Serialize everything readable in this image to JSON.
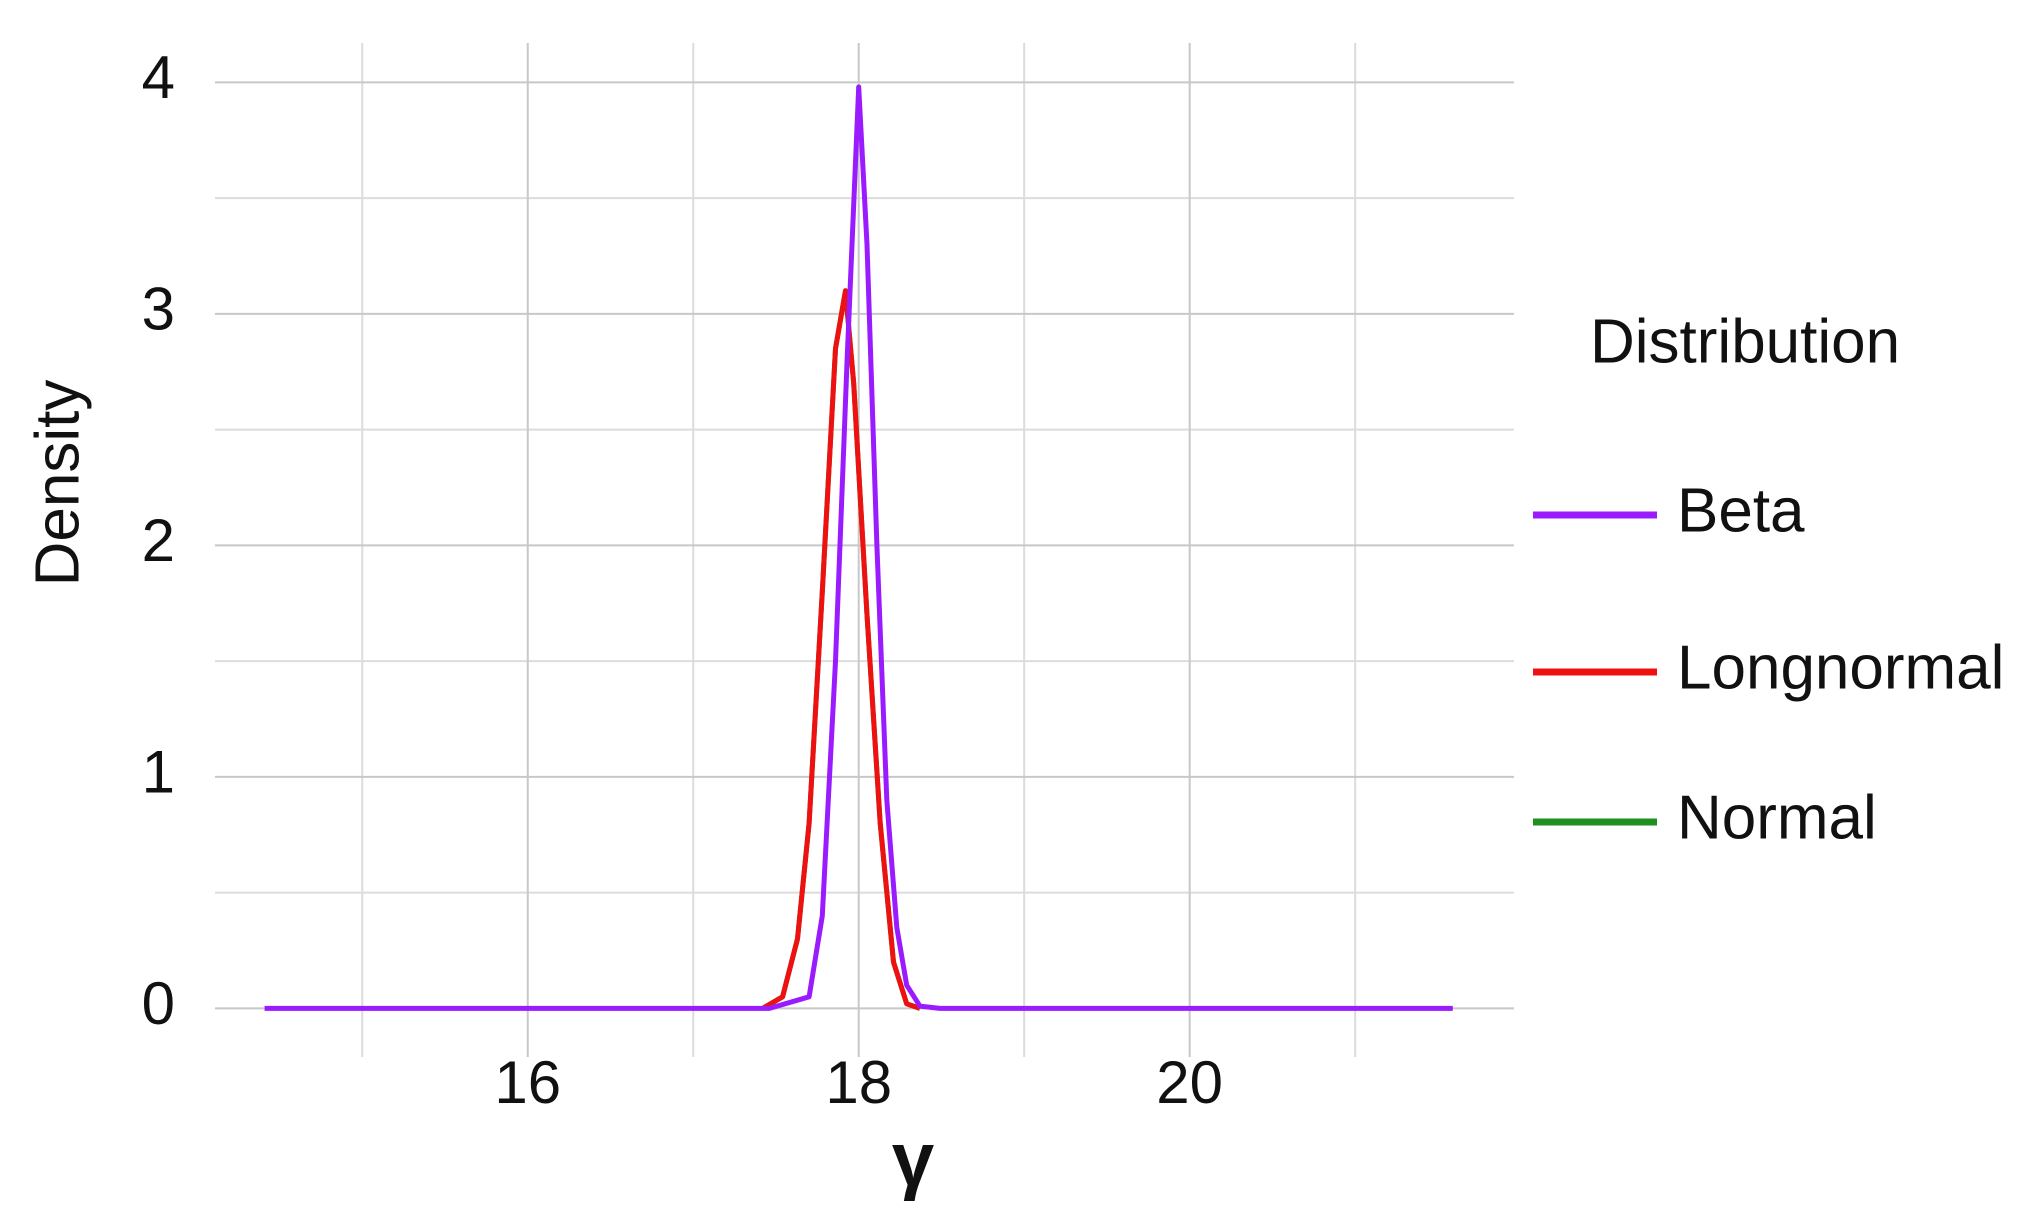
{
  "chart_data": {
    "type": "line",
    "x_label": "γ",
    "y_label": "Density",
    "legend_title": "Distribution",
    "xlim": [
      14.11,
      21.96
    ],
    "ylim": [
      -0.21,
      4.17
    ],
    "xticks": [
      16,
      18,
      20
    ],
    "yticks": [
      0,
      1,
      2,
      3,
      4
    ],
    "xminor": [
      15,
      17,
      19,
      21
    ],
    "yminor": [
      0.5,
      1.5,
      2.5,
      3.5
    ],
    "grid": true,
    "legend_position": "right",
    "series": [
      {
        "name": "Beta",
        "color": "#9b1bff",
        "x": [
          14.41,
          17.46,
          17.7,
          17.78,
          17.86,
          17.93,
          18.0,
          18.05,
          18.11,
          18.17,
          18.23,
          18.29,
          18.37,
          18.49,
          21.59
        ],
        "values": [
          0,
          0,
          0.05,
          0.4,
          1.5,
          2.8,
          3.98,
          3.3,
          2.0,
          0.9,
          0.35,
          0.1,
          0.01,
          0,
          0
        ]
      },
      {
        "name": "Longnormal",
        "color": "#ee1111",
        "x": [
          17.42,
          17.54,
          17.63,
          17.7,
          17.78,
          17.86,
          17.92,
          17.97,
          18.05,
          18.13,
          18.21,
          18.29,
          18.37
        ],
        "values": [
          0,
          0.05,
          0.3,
          0.8,
          1.8,
          2.85,
          3.1,
          2.7,
          1.7,
          0.8,
          0.2,
          0.02,
          0
        ]
      },
      {
        "name": "Normal",
        "color": "#1f8f1f",
        "x": [
          17.42,
          17.54,
          17.63,
          17.7,
          17.78,
          17.86,
          17.92,
          17.97,
          18.05,
          18.13,
          18.21,
          18.29,
          18.37
        ],
        "values": [
          0,
          0.05,
          0.3,
          0.8,
          1.8,
          2.85,
          3.1,
          2.7,
          1.7,
          0.8,
          0.2,
          0.02,
          0
        ]
      }
    ]
  }
}
